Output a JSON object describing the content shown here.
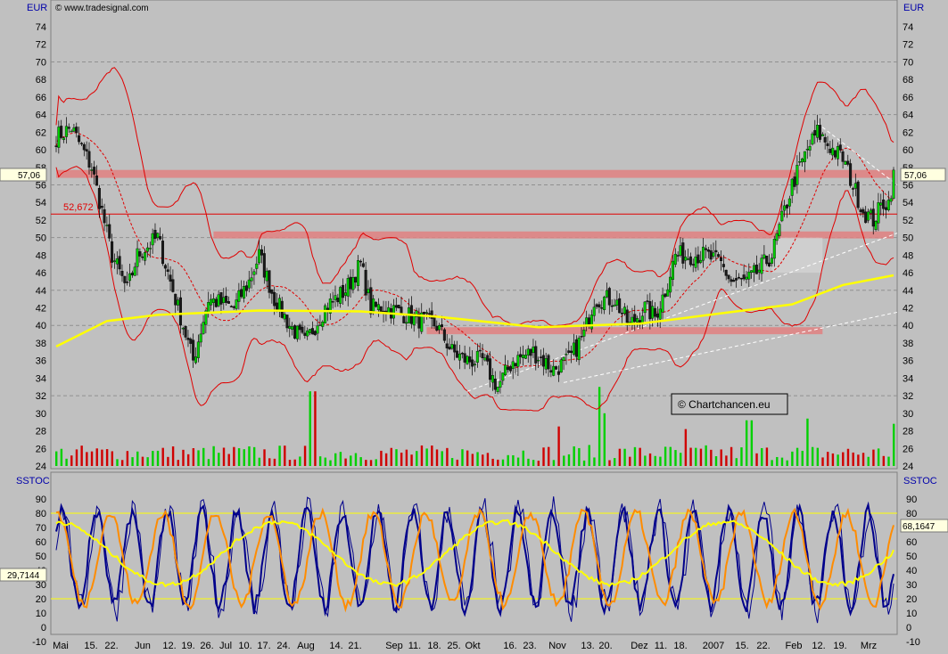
{
  "header": {
    "currency_left": "EUR",
    "currency_right": "EUR",
    "site": "© www.tradesignal.com",
    "price_marker": "57,06",
    "level_label": "52,672"
  },
  "watermark": "© Chartchancen.eu",
  "oscillator": {
    "name": "SSTOC",
    "value_left": "29,7144",
    "value_right": "68,1647"
  },
  "colors": {
    "background": "#c0c0c0",
    "bull": "#00d000",
    "bear": "#d00000",
    "band": "#e00000",
    "ma": "#ffff00",
    "osc_blue": "#00008b",
    "osc_orange": "#ff8c00",
    "zone": "#e08080"
  },
  "chart_data": [
    {
      "type": "candlestick",
      "title": "",
      "ylabel": "EUR",
      "ylim": [
        23,
        76
      ],
      "yticks": [
        24,
        26,
        28,
        30,
        32,
        34,
        36,
        38,
        40,
        42,
        44,
        46,
        48,
        50,
        52,
        54,
        56,
        58,
        60,
        62,
        64,
        66,
        68,
        70,
        72,
        74
      ],
      "x_tick_labels": [
        "Mai",
        "15.",
        "22.",
        "Jun",
        "12.",
        "19.",
        "26.",
        "Jul",
        "10.",
        "17.",
        "24.",
        "Aug",
        "14.",
        "21.",
        "Sep",
        "11.",
        "18.",
        "25.",
        "Okt",
        "16.",
        "23.",
        "Nov",
        "13.",
        "20.",
        "Dez",
        "11.",
        "18.",
        "2007",
        "15.",
        "22.",
        "Feb",
        "12.",
        "19.",
        "Mrz"
      ],
      "anchors": [
        {
          "x": 0,
          "close": 61.5
        },
        {
          "x": 6,
          "close": 62.5
        },
        {
          "x": 14,
          "close": 58
        },
        {
          "x": 22,
          "close": 48
        },
        {
          "x": 28,
          "close": 44
        },
        {
          "x": 32,
          "close": 48
        },
        {
          "x": 40,
          "close": 50
        },
        {
          "x": 46,
          "close": 44
        },
        {
          "x": 50,
          "close": 40
        },
        {
          "x": 54,
          "close": 36
        },
        {
          "x": 60,
          "close": 43
        },
        {
          "x": 70,
          "close": 42
        },
        {
          "x": 76,
          "close": 45
        },
        {
          "x": 80,
          "close": 48
        },
        {
          "x": 86,
          "close": 43
        },
        {
          "x": 92,
          "close": 40
        },
        {
          "x": 98,
          "close": 38
        },
        {
          "x": 106,
          "close": 42
        },
        {
          "x": 114,
          "close": 44
        },
        {
          "x": 120,
          "close": 47
        },
        {
          "x": 124,
          "close": 42
        },
        {
          "x": 130,
          "close": 42
        },
        {
          "x": 140,
          "close": 41
        },
        {
          "x": 150,
          "close": 40
        },
        {
          "x": 156,
          "close": 37
        },
        {
          "x": 162,
          "close": 36
        },
        {
          "x": 168,
          "close": 36
        },
        {
          "x": 174,
          "close": 33
        },
        {
          "x": 180,
          "close": 36
        },
        {
          "x": 188,
          "close": 37
        },
        {
          "x": 196,
          "close": 35
        },
        {
          "x": 202,
          "close": 36
        },
        {
          "x": 208,
          "close": 39
        },
        {
          "x": 212,
          "close": 43
        },
        {
          "x": 220,
          "close": 43
        },
        {
          "x": 226,
          "close": 40
        },
        {
          "x": 232,
          "close": 42
        },
        {
          "x": 236,
          "close": 41
        },
        {
          "x": 240,
          "close": 44
        },
        {
          "x": 244,
          "close": 48
        },
        {
          "x": 250,
          "close": 48
        },
        {
          "x": 256,
          "close": 48
        },
        {
          "x": 262,
          "close": 47
        },
        {
          "x": 266,
          "close": 45
        },
        {
          "x": 272,
          "close": 45
        },
        {
          "x": 276,
          "close": 46
        },
        {
          "x": 282,
          "close": 48
        },
        {
          "x": 286,
          "close": 52
        },
        {
          "x": 290,
          "close": 56
        },
        {
          "x": 296,
          "close": 60
        },
        {
          "x": 300,
          "close": 62
        },
        {
          "x": 306,
          "close": 60
        },
        {
          "x": 310,
          "close": 59
        },
        {
          "x": 314,
          "close": 56
        },
        {
          "x": 318,
          "close": 53
        },
        {
          "x": 322,
          "close": 52
        },
        {
          "x": 326,
          "close": 54
        },
        {
          "x": 328,
          "close": 54
        },
        {
          "x": 330,
          "close": 57
        }
      ],
      "ma200": [
        [
          0,
          37.6
        ],
        [
          20,
          40.5
        ],
        [
          40,
          41.2
        ],
        [
          80,
          41.7
        ],
        [
          120,
          41.6
        ],
        [
          150,
          41
        ],
        [
          190,
          39.8
        ],
        [
          230,
          40.2
        ],
        [
          260,
          41.3
        ],
        [
          290,
          42.4
        ],
        [
          310,
          44.6
        ],
        [
          330,
          45.7
        ]
      ],
      "volume_spikes": [
        {
          "x": 101,
          "v": 32.5
        },
        {
          "x": 198,
          "v": 28.5
        },
        {
          "x": 214,
          "v": 33
        },
        {
          "x": 216,
          "v": 30
        },
        {
          "x": 248,
          "v": 28.2
        },
        {
          "x": 273,
          "v": 29.2
        },
        {
          "x": 296,
          "v": 29.4
        },
        {
          "x": 330,
          "v": 28.8
        }
      ],
      "resistance_zones": [
        {
          "from_x": 0,
          "to_x": 330,
          "low": 56.8,
          "high": 57.7
        },
        {
          "from_x": 62,
          "to_x": 330,
          "low": 49.9,
          "high": 50.7
        },
        {
          "from_x": 146,
          "to_x": 302,
          "low": 39,
          "high": 39.8
        }
      ],
      "level_line": 52.672,
      "gridlines": [
        32,
        40,
        44,
        50,
        56,
        64,
        70
      ]
    },
    {
      "type": "line",
      "title": "SSTOC",
      "ylim": [
        -12,
        97
      ],
      "yticks": [
        -10,
        0,
        10,
        20,
        30,
        40,
        50,
        60,
        70,
        80,
        90
      ],
      "reference_lines": [
        20,
        80
      ],
      "series": []
    }
  ]
}
